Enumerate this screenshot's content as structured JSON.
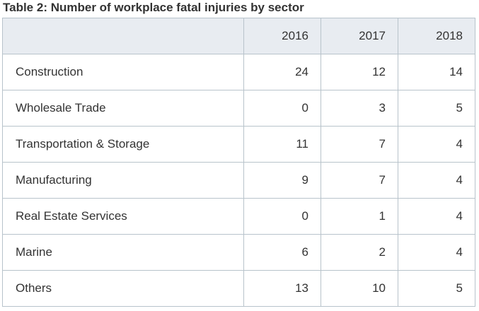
{
  "title": "Table 2: Number of workplace fatal injuries by sector",
  "table": {
    "headers": [
      "",
      "2016",
      "2017",
      "2018"
    ],
    "rows": [
      {
        "sector": "Construction",
        "values": [
          "24",
          "12",
          "14"
        ]
      },
      {
        "sector": "Wholesale Trade",
        "values": [
          "0",
          "3",
          "5"
        ]
      },
      {
        "sector": "Transportation & Storage",
        "values": [
          "11",
          "7",
          "4"
        ]
      },
      {
        "sector": "Manufacturing",
        "values": [
          "9",
          "7",
          "4"
        ]
      },
      {
        "sector": "Real Estate Services",
        "values": [
          "0",
          "1",
          "4"
        ]
      },
      {
        "sector": "Marine",
        "values": [
          "6",
          "2",
          "4"
        ]
      },
      {
        "sector": "Others",
        "values": [
          "13",
          "10",
          "5"
        ]
      }
    ]
  },
  "colors": {
    "header_background": "#e8ecf1",
    "border": "#b8c3cb",
    "text": "#333333"
  }
}
